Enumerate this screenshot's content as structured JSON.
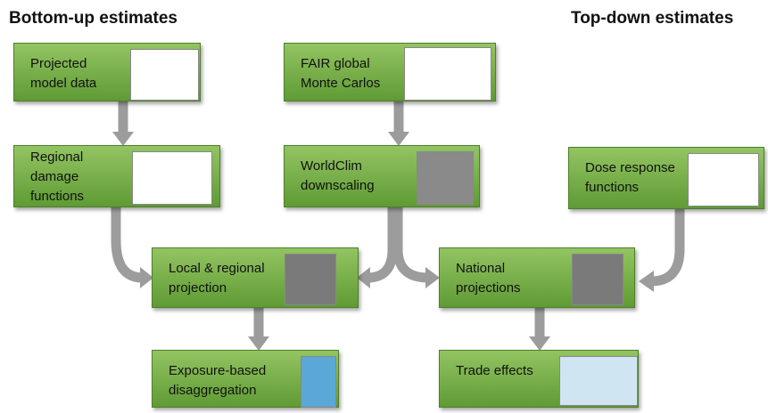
{
  "headers": {
    "left": "Bottom-up estimates",
    "right": "Top-down estimates"
  },
  "nodes": [
    {
      "label": [
        "Projected",
        "model data"
      ]
    },
    {
      "label": [
        "FAIR global",
        "Monte Carlos"
      ]
    },
    {
      "label": [
        "Regional",
        "damage",
        "functions"
      ]
    },
    {
      "label": [
        "WorldClim",
        "downscaling"
      ]
    },
    {
      "label": [
        "Dose response",
        "functions"
      ]
    },
    {
      "label": [
        "Local & regional",
        "projection"
      ]
    },
    {
      "label": [
        "National",
        "projections"
      ]
    },
    {
      "label": [
        "Exposure-based",
        "disaggregation"
      ]
    },
    {
      "label": [
        "Trade effects"
      ]
    }
  ]
}
